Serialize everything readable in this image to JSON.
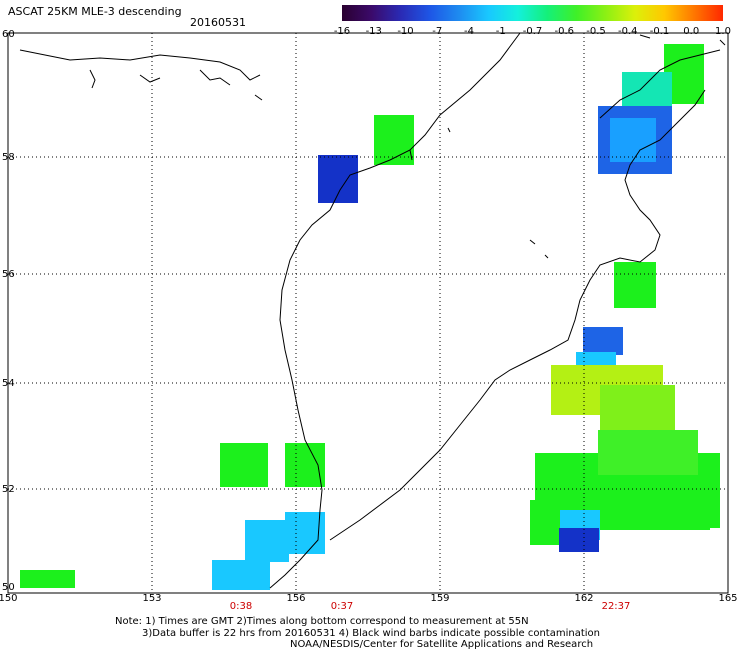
{
  "header": {
    "title": "ASCAT 25KM MLE-3 descending",
    "date": "20160531"
  },
  "colorbar": {
    "colors": [
      "#2a0030",
      "#3b0a6a",
      "#2a2ab4",
      "#1e56e6",
      "#1e8cf0",
      "#19c8ff",
      "#14f0dc",
      "#14f07a",
      "#3ff028",
      "#8cf014",
      "#dcf00a",
      "#ffc800",
      "#ff7800",
      "#ff2800"
    ],
    "ticks": [
      "-16",
      "-13",
      "-10",
      "-7",
      "-4",
      "-1",
      "-0.7",
      "-0.6",
      "-0.5",
      "-0.4",
      "-0.1",
      "0.0",
      "1.0"
    ]
  },
  "map": {
    "lat_labels": [
      "60",
      "58",
      "56",
      "54",
      "52",
      "50"
    ],
    "lon_labels": [
      "150",
      "153",
      "156",
      "159",
      "162",
      "165"
    ],
    "pass_times": [
      "0:38",
      "0:37",
      "22:37"
    ],
    "colors": {
      "land_outline": "#000000",
      "grid": "#000000",
      "pass_time": "#cc0000",
      "green": "#1cf01c",
      "lime": "#7ff01a",
      "yellowgreen": "#b4f014",
      "cyan": "#19c8ff",
      "teal": "#14e6b4",
      "blue": "#1e64e6",
      "darkblue": "#1432c8"
    }
  },
  "notes": {
    "line1": "Note: 1) Times are GMT 2)Times along bottom correspond to measurement at 55N",
    "line2": "3)Data buffer is 22 hrs from 20160531 4) Black wind barbs indicate possible contamination",
    "line3": "NOAA/NESDIS/Center for Satellite Applications and Research"
  }
}
